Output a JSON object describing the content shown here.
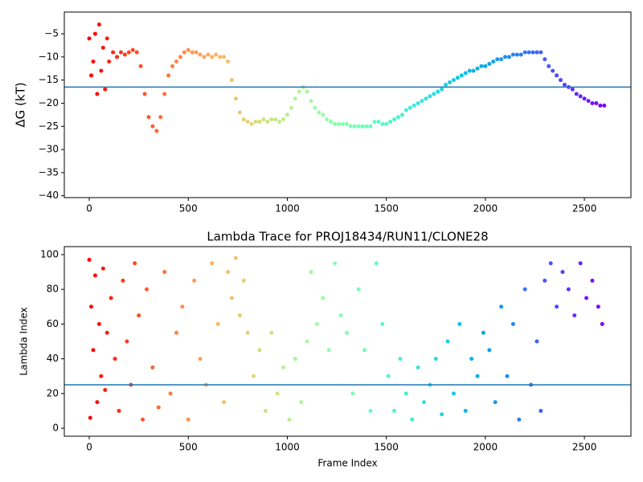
{
  "chart_data": [
    {
      "type": "scatter",
      "ylabel": "ΔG (kT)",
      "colormap": "rainbow_r",
      "hline": -16.5,
      "hline_color": "#1f77b4",
      "xlim": [
        -126,
        2735
      ],
      "ylim": [
        -40.4,
        -0.3
      ],
      "xticks": [
        0,
        500,
        1000,
        1500,
        2000,
        2500
      ],
      "yticks": [
        {
          "value": -40,
          "label": "−40"
        },
        {
          "value": -35,
          "label": "−35"
        },
        {
          "value": -30,
          "label": "−30"
        },
        {
          "value": -25,
          "label": "−25"
        },
        {
          "value": -20,
          "label": "−20"
        },
        {
          "value": -15,
          "label": "−15"
        },
        {
          "value": -10,
          "label": "−10"
        },
        {
          "value": -5,
          "label": "−5"
        }
      ],
      "x": [
        0,
        10,
        20,
        30,
        40,
        50,
        60,
        70,
        80,
        90,
        100,
        120,
        140,
        160,
        180,
        200,
        220,
        240,
        260,
        280,
        300,
        320,
        340,
        360,
        380,
        400,
        420,
        440,
        460,
        480,
        500,
        520,
        540,
        560,
        580,
        600,
        620,
        640,
        660,
        680,
        700,
        720,
        740,
        760,
        780,
        800,
        820,
        840,
        860,
        880,
        900,
        920,
        940,
        960,
        980,
        1000,
        1020,
        1040,
        1060,
        1080,
        1100,
        1120,
        1140,
        1160,
        1180,
        1200,
        1220,
        1240,
        1260,
        1280,
        1300,
        1320,
        1340,
        1360,
        1380,
        1400,
        1420,
        1440,
        1460,
        1480,
        1500,
        1520,
        1540,
        1560,
        1580,
        1600,
        1620,
        1640,
        1660,
        1680,
        1700,
        1720,
        1740,
        1760,
        1780,
        1800,
        1820,
        1840,
        1860,
        1880,
        1900,
        1920,
        1940,
        1960,
        1980,
        2000,
        2020,
        2040,
        2060,
        2080,
        2100,
        2120,
        2140,
        2160,
        2180,
        2200,
        2220,
        2240,
        2260,
        2280,
        2300,
        2320,
        2340,
        2360,
        2380,
        2400,
        2420,
        2440,
        2460,
        2480,
        2500,
        2520,
        2540,
        2560,
        2580,
        2600
      ],
      "values": [
        -6,
        -14,
        -11,
        -5,
        -18,
        -3,
        -13,
        -8,
        -17,
        -6,
        -11,
        -9,
        -10,
        -9,
        -9.5,
        -9,
        -8.5,
        -9,
        -12,
        -18,
        -23,
        -25,
        -26,
        -23,
        -18,
        -14,
        -12,
        -11,
        -10,
        -9,
        -8.5,
        -9,
        -9,
        -9.5,
        -10,
        -9.5,
        -10,
        -9.5,
        -10,
        -10,
        -11,
        -15,
        -19,
        -22,
        -23.5,
        -24,
        -24.5,
        -24,
        -24,
        -23.5,
        -24,
        -23.5,
        -23.5,
        -24,
        -23.5,
        -22.5,
        -21,
        -19,
        -17.5,
        -16.5,
        -17.5,
        -19.5,
        -21,
        -22,
        -22.5,
        -23.5,
        -24,
        -24.5,
        -24.5,
        -24.5,
        -24.5,
        -25,
        -25,
        -25,
        -25,
        -25,
        -25,
        -24,
        -24,
        -24.5,
        -24.5,
        -24,
        -23.5,
        -23,
        -22.5,
        -21.5,
        -21,
        -20.5,
        -20,
        -19.5,
        -19,
        -18.5,
        -18,
        -17.5,
        -17,
        -16,
        -15.5,
        -15,
        -14.5,
        -14,
        -13.5,
        -13,
        -13,
        -12.5,
        -12,
        -12,
        -11.5,
        -11,
        -10.5,
        -10.5,
        -10,
        -10,
        -9.5,
        -9.5,
        -9.5,
        -9,
        -9,
        -9,
        -9,
        -9,
        -10.5,
        -12,
        -13,
        -14,
        -15,
        -16,
        -16.5,
        -17,
        -18,
        -18.5,
        -19,
        -19.5,
        -20,
        -20,
        -20.5,
        -20.5
      ]
    },
    {
      "type": "scatter",
      "title": "Lambda Trace for PROJ18434/RUN11/CLONE28",
      "xlabel": "Frame Index",
      "ylabel": "Lambda Index",
      "colormap": "rainbow_r",
      "hline": 25,
      "hline_color": "#1f77b4",
      "xlim": [
        -126,
        2735
      ],
      "ylim": [
        -4.6,
        104.6
      ],
      "xticks": [
        0,
        500,
        1000,
        1500,
        2000,
        2500
      ],
      "yticks": [
        0,
        20,
        40,
        60,
        80,
        100
      ],
      "x": [
        0,
        5,
        10,
        20,
        30,
        40,
        50,
        60,
        70,
        80,
        90,
        110,
        130,
        150,
        170,
        190,
        210,
        230,
        250,
        270,
        290,
        320,
        350,
        380,
        410,
        440,
        470,
        500,
        530,
        560,
        590,
        620,
        650,
        680,
        700,
        720,
        740,
        760,
        780,
        800,
        830,
        860,
        890,
        920,
        950,
        980,
        1010,
        1040,
        1070,
        1100,
        1120,
        1150,
        1180,
        1210,
        1240,
        1270,
        1300,
        1330,
        1360,
        1390,
        1420,
        1450,
        1480,
        1510,
        1540,
        1570,
        1600,
        1630,
        1660,
        1690,
        1720,
        1750,
        1780,
        1810,
        1840,
        1870,
        1900,
        1930,
        1960,
        1990,
        2020,
        2050,
        2080,
        2110,
        2140,
        2170,
        2200,
        2230,
        2260,
        2280,
        2300,
        2330,
        2360,
        2390,
        2420,
        2450,
        2480,
        2510,
        2540,
        2570,
        2590
      ],
      "values": [
        97,
        6,
        70,
        45,
        88,
        15,
        60,
        30,
        92,
        22,
        55,
        75,
        40,
        10,
        85,
        50,
        25,
        95,
        65,
        5,
        80,
        35,
        12,
        90,
        20,
        55,
        70,
        5,
        85,
        40,
        25,
        95,
        60,
        15,
        90,
        75,
        98,
        65,
        85,
        55,
        30,
        45,
        10,
        55,
        20,
        35,
        5,
        40,
        15,
        50,
        90,
        60,
        75,
        45,
        95,
        65,
        55,
        20,
        80,
        45,
        10,
        95,
        60,
        30,
        10,
        40,
        20,
        5,
        35,
        15,
        25,
        40,
        8,
        50,
        20,
        60,
        10,
        40,
        30,
        55,
        45,
        15,
        70,
        30,
        60,
        5,
        80,
        25,
        50,
        10,
        85,
        95,
        70,
        90,
        80,
        65,
        95,
        75,
        85,
        70,
        60
      ]
    }
  ]
}
